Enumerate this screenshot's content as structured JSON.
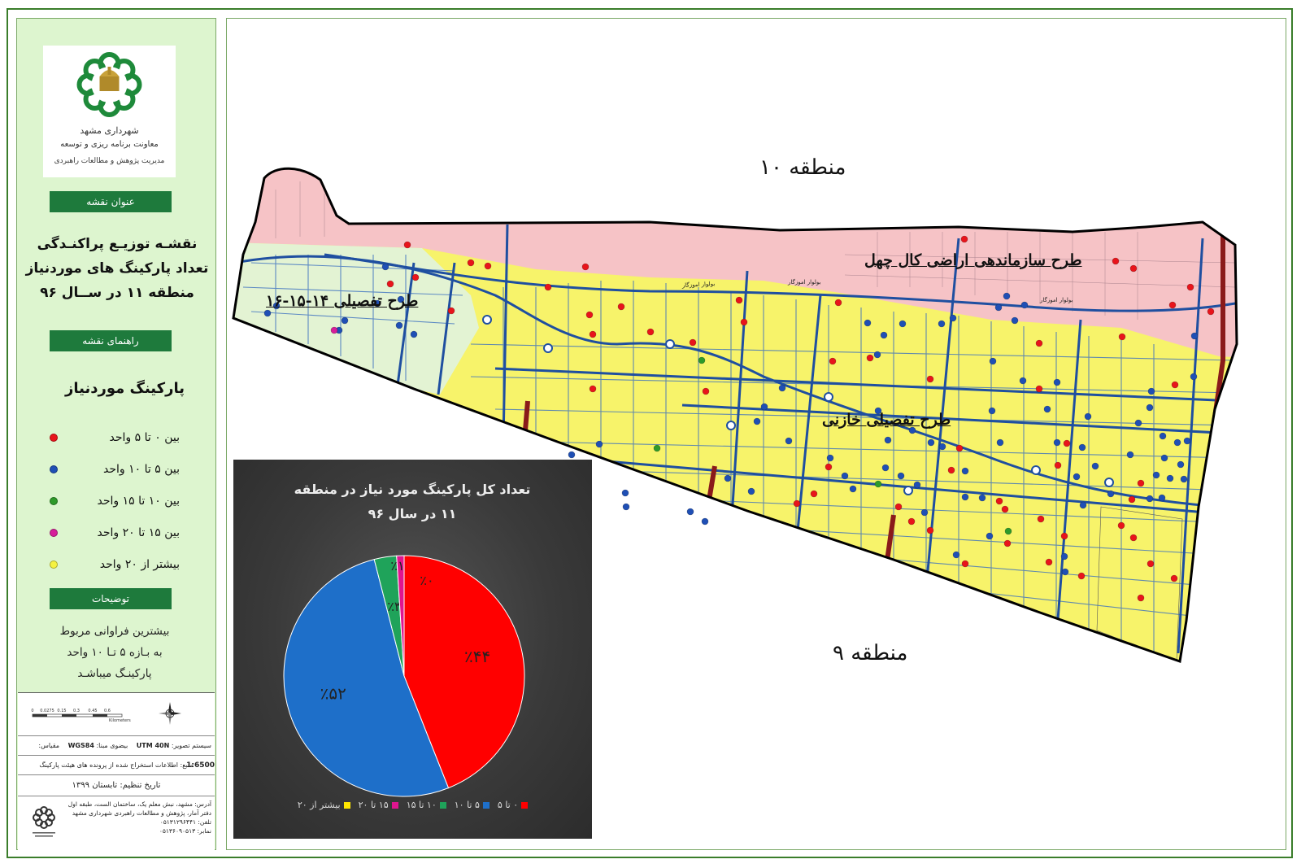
{
  "logo": {
    "line1": "شهرداری مشهد",
    "line2": "معاونت برنامه ریزی و توسعه",
    "line3": "مدیریت پژوهش و مطالعات راهبردی"
  },
  "sidebar": {
    "map_title_header": "عنوان نقشه",
    "map_title_lines": [
      "نقشـه توزیـع پراکنـدگی",
      "تعداد پارکینگ های موردنیاز",
      "منطقه ۱۱ در ســال ۹۶"
    ],
    "legend_header": "راهنمای نقشه",
    "legend_title": "پارکینگ  موردنیاز",
    "legend_items": [
      {
        "label": "بین ۰ تا ۵ واحد",
        "color": "#e8141b"
      },
      {
        "label": "بین ۵ تا ۱۰ واحد",
        "color": "#1f4fb5"
      },
      {
        "label": "بین ۱۰ تا ۱۵ واحد",
        "color": "#2e9a2a"
      },
      {
        "label": "بین ۱۵ تا ۲۰ واحد",
        "color": "#d61e9a"
      },
      {
        "label": "بیشتر از ۲۰ واحد",
        "color": "#f5f243"
      }
    ],
    "notes_header": "توضیحات",
    "notes_lines": [
      "بیشترین فراوانی مربوط",
      "به بـازه ۵ تـا ۱۰ واحد",
      "پارکینـگ میباشـد"
    ]
  },
  "info": {
    "scale_ticks": [
      "0",
      "0.0275",
      "0.15",
      "0.3",
      "0.45",
      "0.6"
    ],
    "scale_unit": "Kilometers",
    "projection_label": "سیستم تصویر:",
    "projection_value": "UTM 40N",
    "datum_label": "بیضوی مبنا:",
    "datum_value": "WGS84",
    "scale_label": "مقیاس:",
    "scale_value": "1:6500",
    "source": "منبع: اطلاعات استخراج شده از پرونده های هیئت پارکینگ",
    "date": "تاریخ تنظیم: تابستان ۱۳۹۹",
    "address_lines": [
      "آدرس: مشهد، نبش معلم یک، ساختمان الست، طبقه اول",
      "دفتر آمار، پژوهش و مطالعات راهبردی شهرداری مشهد",
      "تلفن: ۰۵۱۳۱۲۹۶۴۴۱",
      "نمابر: ۰۵۱۳۶۰۹۰۵۱۳"
    ]
  },
  "map": {
    "region_north": "منطقه ۱۰",
    "region_south": "منطقه ۹",
    "plan_west": "طرح تفصیلی ۱۴-۱۵-۱۶",
    "plan_northeast": "طرح سازماندهی اراضی کال چهل",
    "plan_center": "طرح تفصیلی خازنی",
    "road_label": "بولوار اموزگار",
    "colors": {
      "main_area": "#f7f36a",
      "north_zone": "#f6c3c6",
      "west_zone": "#e3f3d3",
      "roads": "#1f4fa0",
      "minor_roads": "#3a6fc0",
      "highways": "#8a1a1a"
    }
  },
  "chart_data": {
    "type": "pie",
    "title_lines": [
      "تعداد کل پارکینگ مورد نیاز در منطقه",
      "۱۱ در سال ۹۶"
    ],
    "categories": [
      "۰ تا ۵",
      "۵ تا ۱۰",
      "۱۰ تا ۱۵",
      "۱۵ تا ۲۰",
      "بیشتر از ۲۰"
    ],
    "values": [
      44,
      52,
      3,
      1,
      0
    ],
    "labels": [
      "٪۴۴",
      "٪۵۲",
      "٪۳",
      "٪۱",
      "٪۰"
    ],
    "colors": [
      "#ff0000",
      "#1e6fc9",
      "#1fa35a",
      "#e0158f",
      "#ffe600"
    ],
    "legend_position": "bottom"
  }
}
